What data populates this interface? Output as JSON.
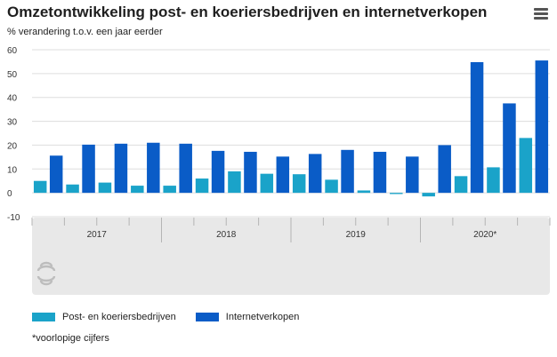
{
  "header": {
    "title": "Omzetontwikkeling post- en koeriersbedrijven en internetverkopen",
    "subtitle": "% verandering t.o.v. een jaar eerder",
    "menu_icon": "hamburger-menu-icon"
  },
  "colors": {
    "series1": "#1aa3c9",
    "series2": "#0a5cc7",
    "grid": "#dddddd",
    "axis_panel": "#e8e8e8",
    "logo": "#bdbdbd"
  },
  "chart_data": {
    "type": "bar",
    "title": "Omzetontwikkeling post- en koeriersbedrijven en internetverkopen",
    "subtitle": "% verandering t.o.v. een jaar eerder",
    "ylim": [
      -10,
      60
    ],
    "yticks": [
      -10,
      0,
      10,
      20,
      30,
      40,
      50,
      60
    ],
    "grid": true,
    "legend_position": "bottom",
    "groups": [
      {
        "label": "2017",
        "quarters": 4
      },
      {
        "label": "2018",
        "quarters": 4
      },
      {
        "label": "2019",
        "quarters": 4
      },
      {
        "label": "2020*",
        "quarters": 4
      }
    ],
    "categories": [
      "2017 Q1",
      "2017 Q2",
      "2017 Q3",
      "2017 Q4",
      "2018 Q1",
      "2018 Q2",
      "2018 Q3",
      "2018 Q4",
      "2019 Q1",
      "2019 Q2",
      "2019 Q3",
      "2019 Q4",
      "2020* Q1",
      "2020* Q2",
      "2020* Q3",
      "2020* Q4"
    ],
    "series": [
      {
        "name": "Post- en koeriersbedrijven",
        "values": [
          5,
          3.5,
          4.3,
          3,
          3,
          6,
          9,
          8,
          7.8,
          5.5,
          1,
          -0.5,
          -1.5,
          7,
          10.7,
          23
        ]
      },
      {
        "name": "Internetverkopen",
        "values": [
          15.6,
          20.2,
          20.6,
          21,
          20.6,
          17.6,
          17.2,
          15.2,
          16.3,
          18,
          17.2,
          15.2,
          20,
          54.8,
          37.5,
          55.5
        ]
      }
    ]
  },
  "legend": {
    "items": [
      {
        "label": "Post- en koeriersbedrijven"
      },
      {
        "label": "Internetverkopen"
      }
    ]
  },
  "footnote": "*voorlopige cijfers",
  "logo_icon": "cbs-logo-icon"
}
